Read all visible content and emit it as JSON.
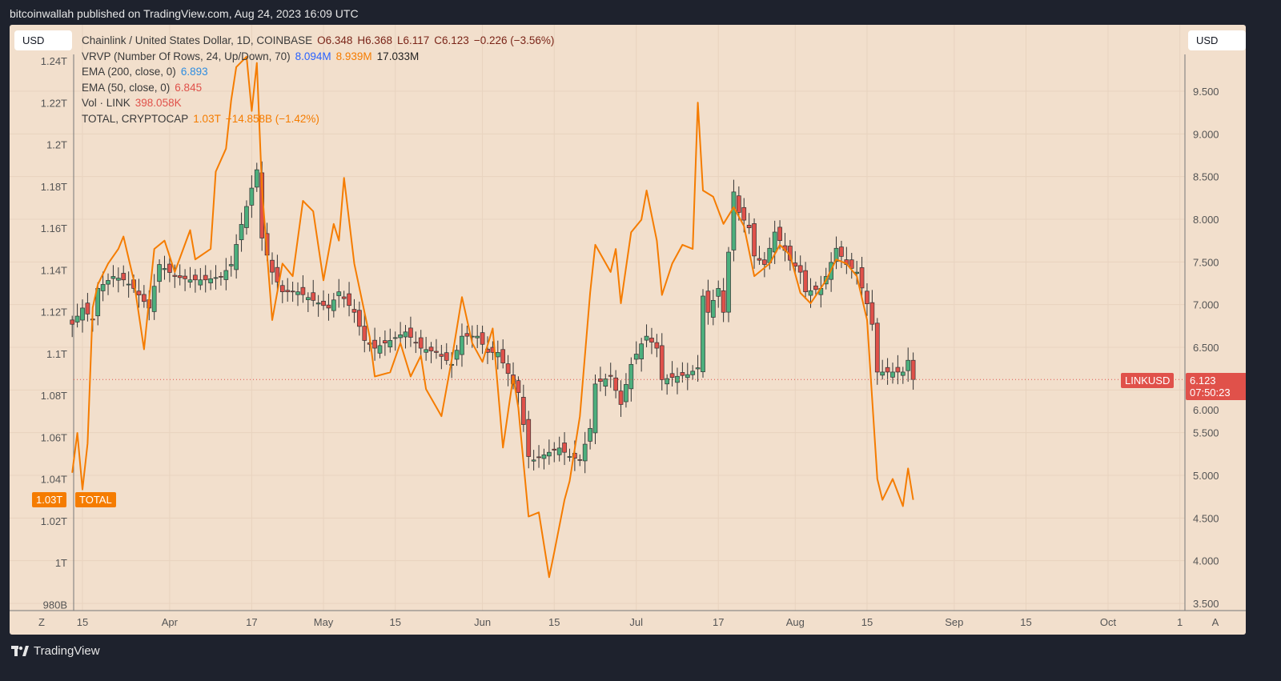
{
  "header": {
    "published": "bitcoinwallah published on TradingView.com, Aug 24, 2023 16:09 UTC"
  },
  "currency_left": "USD",
  "currency_right": "USD",
  "legend": {
    "main": "Chainlink / United States Dollar, 1D, COINBASE",
    "o": "O6.348",
    "h": "H6.368",
    "l": "L6.117",
    "c": "C6.123",
    "chg": "−0.226 (−3.56%)",
    "vrvp": "VRVP (Number Of Rows, 24, Up/Down, 70)",
    "vrvp_up": "8.094M",
    "vrvp_down": "8.939M",
    "vrvp_total": "17.033M",
    "ema200": "EMA (200, close, 0)",
    "ema200_val": "6.893",
    "ema50": "EMA (50, close, 0)",
    "ema50_val": "6.845",
    "vol": "Vol · LINK",
    "vol_val": "398.058K",
    "total": "TOTAL, CRYPTOCAP",
    "total_val": "1.03T",
    "total_chg": "−14.858B (−1.42%)"
  },
  "price_tag": {
    "symbol": "LINKUSD",
    "price": "6.123",
    "countdown": "07:50:23"
  },
  "total_tag": {
    "value": "1.03T",
    "label": "TOTAL"
  },
  "axis_buttons": {
    "left": "Z",
    "right": "A"
  },
  "footer": {
    "brand": "TradingView"
  },
  "colors": {
    "up": "#4caf7d",
    "down": "#e0514a",
    "total_line": "#f57c00",
    "price_line": "#e0514a",
    "background": "#f2dfcc"
  },
  "chart_data": {
    "type": "candlestick+line",
    "x_ticks": [
      "15",
      "Apr",
      "17",
      "May",
      "15",
      "Jun",
      "15",
      "Jul",
      "17",
      "Aug",
      "15",
      "Sep",
      "15",
      "Oct",
      "1"
    ],
    "x_tick_dates": [
      "2023-03-15",
      "2023-04-01",
      "2023-04-17",
      "2023-05-01",
      "2023-05-15",
      "2023-06-01",
      "2023-06-15",
      "2023-07-01",
      "2023-07-17",
      "2023-08-01",
      "2023-08-15",
      "2023-09-01",
      "2023-09-15",
      "2023-10-01",
      "2023-10-15"
    ],
    "right_axis": {
      "label": "LINKUSD",
      "range": [
        3.5,
        9.5
      ],
      "ticks": [
        "9.500",
        "9.000",
        "8.500",
        "8.000",
        "7.500",
        "7.000",
        "6.500",
        "6.000",
        "5.500",
        "5.000",
        "4.500",
        "4.000",
        "3.500"
      ]
    },
    "left_axis": {
      "label": "TOTAL",
      "range": [
        0.98,
        1.24
      ],
      "ticks": [
        "1.24T",
        "1.22T",
        "1.2T",
        "1.18T",
        "1.16T",
        "1.14T",
        "1.12T",
        "1.1T",
        "1.08T",
        "1.06T",
        "1.04T",
        "1.02T",
        "1T",
        "980B"
      ]
    },
    "last_price": 6.123,
    "link_close": [
      [
        "2023-03-13",
        6.77
      ],
      [
        "2023-03-15",
        6.96
      ],
      [
        "2023-03-17",
        6.82
      ],
      [
        "2023-03-18",
        7.19
      ],
      [
        "2023-03-21",
        7.33
      ],
      [
        "2023-03-23",
        7.29
      ],
      [
        "2023-03-25",
        7.19
      ],
      [
        "2023-03-28",
        6.96
      ],
      [
        "2023-03-30",
        7.47
      ],
      [
        "2023-04-02",
        7.33
      ],
      [
        "2023-04-05",
        7.29
      ],
      [
        "2023-04-08",
        7.29
      ],
      [
        "2023-04-11",
        7.33
      ],
      [
        "2023-04-13",
        7.47
      ],
      [
        "2023-04-15",
        7.94
      ],
      [
        "2023-04-16",
        8.15
      ],
      [
        "2023-04-18",
        8.58
      ],
      [
        "2023-04-19",
        7.78
      ],
      [
        "2023-04-21",
        7.38
      ],
      [
        "2023-04-23",
        7.15
      ],
      [
        "2023-04-26",
        7.15
      ],
      [
        "2023-04-29",
        7.05
      ],
      [
        "2023-05-02",
        6.96
      ],
      [
        "2023-05-04",
        7.15
      ],
      [
        "2023-05-07",
        6.91
      ],
      [
        "2023-05-09",
        6.58
      ],
      [
        "2023-05-11",
        6.49
      ],
      [
        "2023-05-14",
        6.58
      ],
      [
        "2023-05-17",
        6.68
      ],
      [
        "2023-05-20",
        6.49
      ],
      [
        "2023-05-23",
        6.44
      ],
      [
        "2023-05-26",
        6.3
      ],
      [
        "2023-05-28",
        6.63
      ],
      [
        "2023-05-31",
        6.63
      ],
      [
        "2023-06-02",
        6.44
      ],
      [
        "2023-06-04",
        6.44
      ],
      [
        "2023-06-07",
        6.07
      ],
      [
        "2023-06-08",
        5.97
      ],
      [
        "2023-06-10",
        5.22
      ],
      [
        "2023-06-11",
        5.18
      ],
      [
        "2023-06-14",
        5.27
      ],
      [
        "2023-06-16",
        5.32
      ],
      [
        "2023-06-18",
        5.22
      ],
      [
        "2023-06-20",
        5.18
      ],
      [
        "2023-06-22",
        5.55
      ],
      [
        "2023-06-23",
        6.07
      ],
      [
        "2023-06-26",
        6.16
      ],
      [
        "2023-06-28",
        5.83
      ],
      [
        "2023-06-30",
        6.3
      ],
      [
        "2023-07-02",
        6.54
      ],
      [
        "2023-07-03",
        6.63
      ],
      [
        "2023-07-05",
        6.49
      ],
      [
        "2023-07-06",
        6.12
      ],
      [
        "2023-07-09",
        6.16
      ],
      [
        "2023-07-11",
        6.18
      ],
      [
        "2023-07-13",
        6.26
      ],
      [
        "2023-07-14",
        7.1
      ],
      [
        "2023-07-15",
        6.91
      ],
      [
        "2023-07-17",
        7.19
      ],
      [
        "2023-07-18",
        6.91
      ],
      [
        "2023-07-20",
        8.32
      ],
      [
        "2023-07-21",
        8.08
      ],
      [
        "2023-07-23",
        7.9
      ],
      [
        "2023-07-24",
        7.57
      ],
      [
        "2023-07-26",
        7.47
      ],
      [
        "2023-07-28",
        7.85
      ],
      [
        "2023-07-29",
        7.75
      ],
      [
        "2023-07-31",
        7.52
      ],
      [
        "2023-08-02",
        7.38
      ],
      [
        "2023-08-03",
        7.15
      ],
      [
        "2023-08-06",
        7.19
      ],
      [
        "2023-08-07",
        7.33
      ],
      [
        "2023-08-09",
        7.66
      ],
      [
        "2023-08-11",
        7.47
      ],
      [
        "2023-08-13",
        7.38
      ],
      [
        "2023-08-15",
        7.01
      ],
      [
        "2023-08-16",
        6.77
      ],
      [
        "2023-08-17",
        6.21
      ],
      [
        "2023-08-19",
        6.21
      ],
      [
        "2023-08-22",
        6.21
      ],
      [
        "2023-08-23",
        6.348
      ],
      [
        "2023-08-24",
        6.123
      ]
    ],
    "total_market_cap_T": [
      [
        "2023-03-13",
        1.043
      ],
      [
        "2023-03-14",
        1.062
      ],
      [
        "2023-03-15",
        1.035
      ],
      [
        "2023-03-16",
        1.057
      ],
      [
        "2023-03-17",
        1.122
      ],
      [
        "2023-03-18",
        1.133
      ],
      [
        "2023-03-20",
        1.143
      ],
      [
        "2023-03-22",
        1.15
      ],
      [
        "2023-03-23",
        1.156
      ],
      [
        "2023-03-25",
        1.135
      ],
      [
        "2023-03-27",
        1.102
      ],
      [
        "2023-03-29",
        1.15
      ],
      [
        "2023-03-31",
        1.154
      ],
      [
        "2023-04-02",
        1.139
      ],
      [
        "2023-04-05",
        1.159
      ],
      [
        "2023-04-06",
        1.145
      ],
      [
        "2023-04-09",
        1.15
      ],
      [
        "2023-04-10",
        1.187
      ],
      [
        "2023-04-12",
        1.198
      ],
      [
        "2023-04-13",
        1.221
      ],
      [
        "2023-04-14",
        1.237
      ],
      [
        "2023-04-16",
        1.242
      ],
      [
        "2023-04-17",
        1.216
      ],
      [
        "2023-04-18",
        1.239
      ],
      [
        "2023-04-19",
        1.179
      ],
      [
        "2023-04-21",
        1.116
      ],
      [
        "2023-04-23",
        1.143
      ],
      [
        "2023-04-25",
        1.137
      ],
      [
        "2023-04-27",
        1.173
      ],
      [
        "2023-04-29",
        1.168
      ],
      [
        "2023-05-01",
        1.135
      ],
      [
        "2023-05-03",
        1.162
      ],
      [
        "2023-05-04",
        1.154
      ],
      [
        "2023-05-05",
        1.184
      ],
      [
        "2023-05-07",
        1.143
      ],
      [
        "2023-05-10",
        1.108
      ],
      [
        "2023-05-11",
        1.089
      ],
      [
        "2023-05-14",
        1.091
      ],
      [
        "2023-05-16",
        1.105
      ],
      [
        "2023-05-18",
        1.089
      ],
      [
        "2023-05-20",
        1.099
      ],
      [
        "2023-05-21",
        1.083
      ],
      [
        "2023-05-24",
        1.07
      ],
      [
        "2023-05-26",
        1.097
      ],
      [
        "2023-05-28",
        1.127
      ],
      [
        "2023-05-30",
        1.105
      ],
      [
        "2023-06-01",
        1.096
      ],
      [
        "2023-06-03",
        1.112
      ],
      [
        "2023-06-05",
        1.055
      ],
      [
        "2023-06-07",
        1.089
      ],
      [
        "2023-06-08",
        1.074
      ],
      [
        "2023-06-10",
        1.022
      ],
      [
        "2023-06-12",
        1.024
      ],
      [
        "2023-06-14",
        0.993
      ],
      [
        "2023-06-15",
        1.005
      ],
      [
        "2023-06-17",
        1.03
      ],
      [
        "2023-06-18",
        1.039
      ],
      [
        "2023-06-20",
        1.07
      ],
      [
        "2023-06-22",
        1.129
      ],
      [
        "2023-06-23",
        1.152
      ],
      [
        "2023-06-26",
        1.139
      ],
      [
        "2023-06-27",
        1.15
      ],
      [
        "2023-06-28",
        1.124
      ],
      [
        "2023-06-30",
        1.158
      ],
      [
        "2023-07-02",
        1.164
      ],
      [
        "2023-07-03",
        1.178
      ],
      [
        "2023-07-05",
        1.154
      ],
      [
        "2023-07-06",
        1.128
      ],
      [
        "2023-07-08",
        1.143
      ],
      [
        "2023-07-10",
        1.152
      ],
      [
        "2023-07-12",
        1.15
      ],
      [
        "2023-07-13",
        1.22
      ],
      [
        "2023-07-14",
        1.178
      ],
      [
        "2023-07-16",
        1.175
      ],
      [
        "2023-07-18",
        1.162
      ],
      [
        "2023-07-20",
        1.17
      ],
      [
        "2023-07-22",
        1.161
      ],
      [
        "2023-07-24",
        1.137
      ],
      [
        "2023-07-27",
        1.143
      ],
      [
        "2023-07-29",
        1.152
      ],
      [
        "2023-07-31",
        1.147
      ],
      [
        "2023-08-02",
        1.129
      ],
      [
        "2023-08-04",
        1.124
      ],
      [
        "2023-08-07",
        1.135
      ],
      [
        "2023-08-09",
        1.145
      ],
      [
        "2023-08-11",
        1.143
      ],
      [
        "2023-08-13",
        1.137
      ],
      [
        "2023-08-15",
        1.116
      ],
      [
        "2023-08-17",
        1.04
      ],
      [
        "2023-08-18",
        1.03
      ],
      [
        "2023-08-20",
        1.04
      ],
      [
        "2023-08-22",
        1.027
      ],
      [
        "2023-08-23",
        1.045
      ],
      [
        "2023-08-24",
        1.03
      ]
    ]
  }
}
